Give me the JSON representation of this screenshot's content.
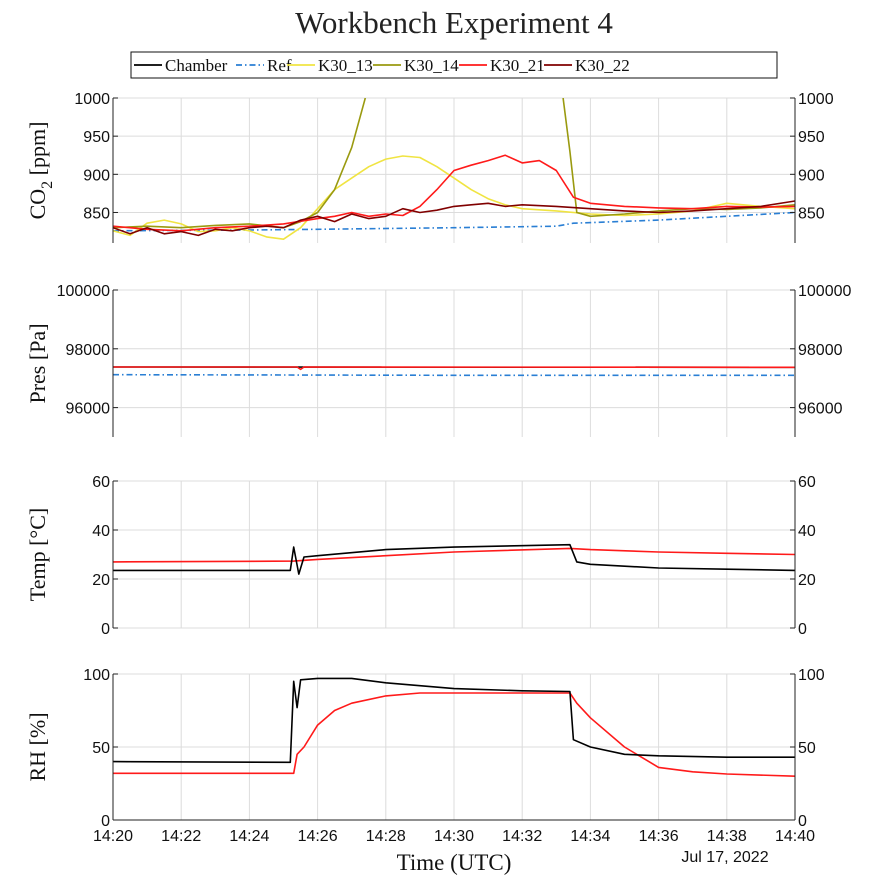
{
  "chart_data": {
    "type": "line",
    "title": "Workbench  Experiment 4",
    "xlabel": "Time (UTC)",
    "date_label": "Jul 17, 2022",
    "x_ticks": [
      "14:20",
      "14:22",
      "14:24",
      "14:26",
      "14:28",
      "14:30",
      "14:32",
      "14:34",
      "14:36",
      "14:38",
      "14:40"
    ],
    "xlim": [
      "14:20",
      "14:40"
    ],
    "grid": true,
    "legend": {
      "placement": "top",
      "entries": [
        {
          "name": "Chamber",
          "color": "#000000",
          "dash": "solid"
        },
        {
          "name": "Ref",
          "color": "#2a7fd4",
          "dash": "dashdot"
        },
        {
          "name": "K30_13",
          "color": "#f0e442",
          "dash": "solid"
        },
        {
          "name": "K30_14",
          "color": "#9a9a10",
          "dash": "solid"
        },
        {
          "name": "K30_21",
          "color": "#ff1a1a",
          "dash": "solid"
        },
        {
          "name": "K30_22",
          "color": "#800000",
          "dash": "solid"
        }
      ]
    },
    "panels": [
      {
        "id": "co2",
        "ylabel_main": "CO",
        "ylabel_sub": "2",
        "ylabel_tail": " [ppm]",
        "ylim": [
          810,
          1000
        ],
        "y_ticks": [
          850,
          900,
          950,
          1000
        ],
        "series": [
          {
            "name": "Ref",
            "color": "#2a7fd4",
            "dash": "dashdot",
            "points": [
              [
                "14:20",
                826
              ],
              [
                "14:24",
                827
              ],
              [
                "14:26",
                828
              ],
              [
                "14:30",
                830
              ],
              [
                "14:33",
                832
              ],
              [
                "14:33.5",
                836
              ],
              [
                "14:36",
                840
              ],
              [
                "14:40",
                850
              ]
            ]
          },
          {
            "name": "K30_13",
            "color": "#f0e442",
            "dash": "solid",
            "points": [
              [
                "14:20",
                826
              ],
              [
                "14:20.5",
                820
              ],
              [
                "14:21",
                836
              ],
              [
                "14:21.5",
                840
              ],
              [
                "14:22",
                835
              ],
              [
                "14:22.5",
                825
              ],
              [
                "14:23",
                826
              ],
              [
                "14:23.5",
                830
              ],
              [
                "14:24",
                826
              ],
              [
                "14:24.5",
                818
              ],
              [
                "14:25",
                815
              ],
              [
                "14:25.5",
                830
              ],
              [
                "14:26",
                855
              ],
              [
                "14:26.5",
                880
              ],
              [
                "14:27",
                895
              ],
              [
                "14:27.5",
                910
              ],
              [
                "14:28",
                920
              ],
              [
                "14:28.5",
                924
              ],
              [
                "14:29",
                922
              ],
              [
                "14:29.5",
                910
              ],
              [
                "14:30",
                895
              ],
              [
                "14:30.5",
                880
              ],
              [
                "14:31",
                868
              ],
              [
                "14:31.5",
                860
              ],
              [
                "14:32",
                855
              ],
              [
                "14:33",
                852
              ],
              [
                "14:34",
                848
              ],
              [
                "14:35",
                846
              ],
              [
                "14:36",
                848
              ],
              [
                "14:37",
                852
              ],
              [
                "14:38",
                862
              ],
              [
                "14:39",
                858
              ],
              [
                "14:40",
                855
              ]
            ]
          },
          {
            "name": "K30_14",
            "color": "#9a9a10",
            "dash": "solid",
            "points": [
              [
                "14:20",
                830
              ],
              [
                "14:21",
                832
              ],
              [
                "14:22",
                830
              ],
              [
                "14:23",
                833
              ],
              [
                "14:24",
                835
              ],
              [
                "14:25",
                830
              ],
              [
                "14:25.5",
                838
              ],
              [
                "14:26",
                850
              ],
              [
                "14:26.5",
                880
              ],
              [
                "14:27",
                935
              ],
              [
                "14:27.4",
                1000
              ]
            ]
          },
          {
            "name": "K30_14 (return)",
            "color": "#9a9a10",
            "dash": "solid",
            "points": [
              [
                "14:33.2",
                1000
              ],
              [
                "14:33.4",
                930
              ],
              [
                "14:33.6",
                850
              ],
              [
                "14:34",
                845
              ],
              [
                "14:35",
                848
              ],
              [
                "14:36",
                852
              ],
              [
                "14:37",
                855
              ],
              [
                "14:38",
                854
              ],
              [
                "14:39",
                856
              ],
              [
                "14:40",
                860
              ]
            ]
          },
          {
            "name": "K30_21",
            "color": "#ff1a1a",
            "dash": "solid",
            "points": [
              [
                "14:20",
                832
              ],
              [
                "14:21",
                828
              ],
              [
                "14:22",
                826
              ],
              [
                "14:23",
                830
              ],
              [
                "14:24",
                832
              ],
              [
                "14:25",
                835
              ],
              [
                "14:26",
                842
              ],
              [
                "14:26.5",
                845
              ],
              [
                "14:27",
                850
              ],
              [
                "14:27.5",
                845
              ],
              [
                "14:28",
                848
              ],
              [
                "14:28.5",
                846
              ],
              [
                "14:29",
                858
              ],
              [
                "14:29.5",
                880
              ],
              [
                "14:30",
                905
              ],
              [
                "14:30.5",
                912
              ],
              [
                "14:31",
                918
              ],
              [
                "14:31.5",
                925
              ],
              [
                "14:32",
                915
              ],
              [
                "14:32.5",
                918
              ],
              [
                "14:33",
                905
              ],
              [
                "14:33.5",
                870
              ],
              [
                "14:34",
                862
              ],
              [
                "14:35",
                858
              ],
              [
                "14:36",
                856
              ],
              [
                "14:37",
                855
              ],
              [
                "14:38",
                858
              ],
              [
                "14:39",
                857
              ],
              [
                "14:40",
                858
              ]
            ]
          },
          {
            "name": "K30_22",
            "color": "#800000",
            "dash": "solid",
            "points": [
              [
                "14:20",
                830
              ],
              [
                "14:20.5",
                822
              ],
              [
                "14:21",
                830
              ],
              [
                "14:21.5",
                822
              ],
              [
                "14:22",
                825
              ],
              [
                "14:22.5",
                820
              ],
              [
                "14:23",
                828
              ],
              [
                "14:23.5",
                826
              ],
              [
                "14:24",
                830
              ],
              [
                "14:24.5",
                832
              ],
              [
                "14:25",
                830
              ],
              [
                "14:25.5",
                840
              ],
              [
                "14:26",
                845
              ],
              [
                "14:26.5",
                838
              ],
              [
                "14:27",
                848
              ],
              [
                "14:27.5",
                842
              ],
              [
                "14:28",
                845
              ],
              [
                "14:28.5",
                855
              ],
              [
                "14:29",
                850
              ],
              [
                "14:29.5",
                853
              ],
              [
                "14:30",
                858
              ],
              [
                "14:30.5",
                860
              ],
              [
                "14:31",
                862
              ],
              [
                "14:31.5",
                858
              ],
              [
                "14:32",
                860
              ],
              [
                "14:33",
                858
              ],
              [
                "14:34",
                855
              ],
              [
                "14:35",
                852
              ],
              [
                "14:36",
                850
              ],
              [
                "14:37",
                852
              ],
              [
                "14:38",
                855
              ],
              [
                "14:39",
                858
              ],
              [
                "14:40",
                865
              ]
            ]
          }
        ]
      },
      {
        "id": "pres",
        "ylabel_main": "Pres [Pa]",
        "ylim": [
          95000,
          100000
        ],
        "y_ticks": [
          96000,
          98000,
          100000
        ],
        "series": [
          {
            "name": "Chamber",
            "color": "#000000",
            "dash": "solid",
            "points": [
              [
                "14:20",
                97380
              ],
              [
                "14:40",
                97370
              ]
            ]
          },
          {
            "name": "K30_21",
            "color": "#ff1a1a",
            "dash": "solid",
            "points": [
              [
                "14:20",
                97380
              ],
              [
                "14:25.4",
                97380
              ],
              [
                "14:25.5",
                97300
              ],
              [
                "14:25.6",
                97380
              ],
              [
                "14:40",
                97370
              ]
            ]
          },
          {
            "name": "Ref",
            "color": "#2a7fd4",
            "dash": "dashdot",
            "points": [
              [
                "14:20",
                97120
              ],
              [
                "14:30",
                97100
              ],
              [
                "14:40",
                97100
              ]
            ]
          }
        ]
      },
      {
        "id": "temp",
        "ylabel_main": "Temp [°C]",
        "ylim": [
          0,
          60
        ],
        "y_ticks": [
          0,
          20,
          40,
          60
        ],
        "series": [
          {
            "name": "K30_21",
            "color": "#ff1a1a",
            "dash": "solid",
            "points": [
              [
                "14:20",
                27
              ],
              [
                "14:25.3",
                27.3
              ],
              [
                "14:26",
                28
              ],
              [
                "14:28",
                29.5
              ],
              [
                "14:30",
                31
              ],
              [
                "14:33.4",
                32.5
              ],
              [
                "14:34",
                32
              ],
              [
                "14:36",
                31
              ],
              [
                "14:38",
                30.5
              ],
              [
                "14:40",
                30
              ]
            ]
          },
          {
            "name": "Chamber",
            "color": "#000000",
            "dash": "solid",
            "points": [
              [
                "14:20",
                23.5
              ],
              [
                "14:25.2",
                23.5
              ],
              [
                "14:25.3",
                33
              ],
              [
                "14:25.45",
                22
              ],
              [
                "14:25.6",
                29
              ],
              [
                "14:26",
                29.5
              ],
              [
                "14:28",
                32
              ],
              [
                "14:30",
                33
              ],
              [
                "14:33.4",
                34
              ],
              [
                "14:33.6",
                27
              ],
              [
                "14:34",
                26
              ],
              [
                "14:36",
                24.5
              ],
              [
                "14:38",
                24
              ],
              [
                "14:40",
                23.5
              ]
            ]
          }
        ]
      },
      {
        "id": "rh",
        "ylabel_main": "RH [%]",
        "ylim": [
          0,
          100
        ],
        "y_ticks": [
          0,
          50,
          100
        ],
        "series": [
          {
            "name": "K30_21",
            "color": "#ff1a1a",
            "dash": "solid",
            "points": [
              [
                "14:20",
                32
              ],
              [
                "14:25.3",
                32
              ],
              [
                "14:25.4",
                45
              ],
              [
                "14:25.6",
                50
              ],
              [
                "14:26",
                65
              ],
              [
                "14:26.5",
                75
              ],
              [
                "14:27",
                80
              ],
              [
                "14:28",
                85
              ],
              [
                "14:29",
                87
              ],
              [
                "14:33.4",
                87
              ],
              [
                "14:33.6",
                80
              ],
              [
                "14:34",
                70
              ],
              [
                "14:35",
                50
              ],
              [
                "14:36",
                36
              ],
              [
                "14:37",
                33
              ],
              [
                "14:38",
                31.5
              ],
              [
                "14:40",
                30
              ]
            ]
          },
          {
            "name": "Chamber",
            "color": "#000000",
            "dash": "solid",
            "points": [
              [
                "14:20",
                40
              ],
              [
                "14:25.2",
                39.5
              ],
              [
                "14:25.3",
                95
              ],
              [
                "14:25.4",
                77
              ],
              [
                "14:25.5",
                96
              ],
              [
                "14:26",
                97
              ],
              [
                "14:27",
                97
              ],
              [
                "14:28",
                94
              ],
              [
                "14:30",
                90
              ],
              [
                "14:32",
                88.5
              ],
              [
                "14:33.4",
                88
              ],
              [
                "14:33.5",
                55
              ],
              [
                "14:34",
                50
              ],
              [
                "14:35",
                45
              ],
              [
                "14:36",
                44
              ],
              [
                "14:38",
                43
              ],
              [
                "14:40",
                43
              ]
            ]
          }
        ]
      }
    ]
  }
}
